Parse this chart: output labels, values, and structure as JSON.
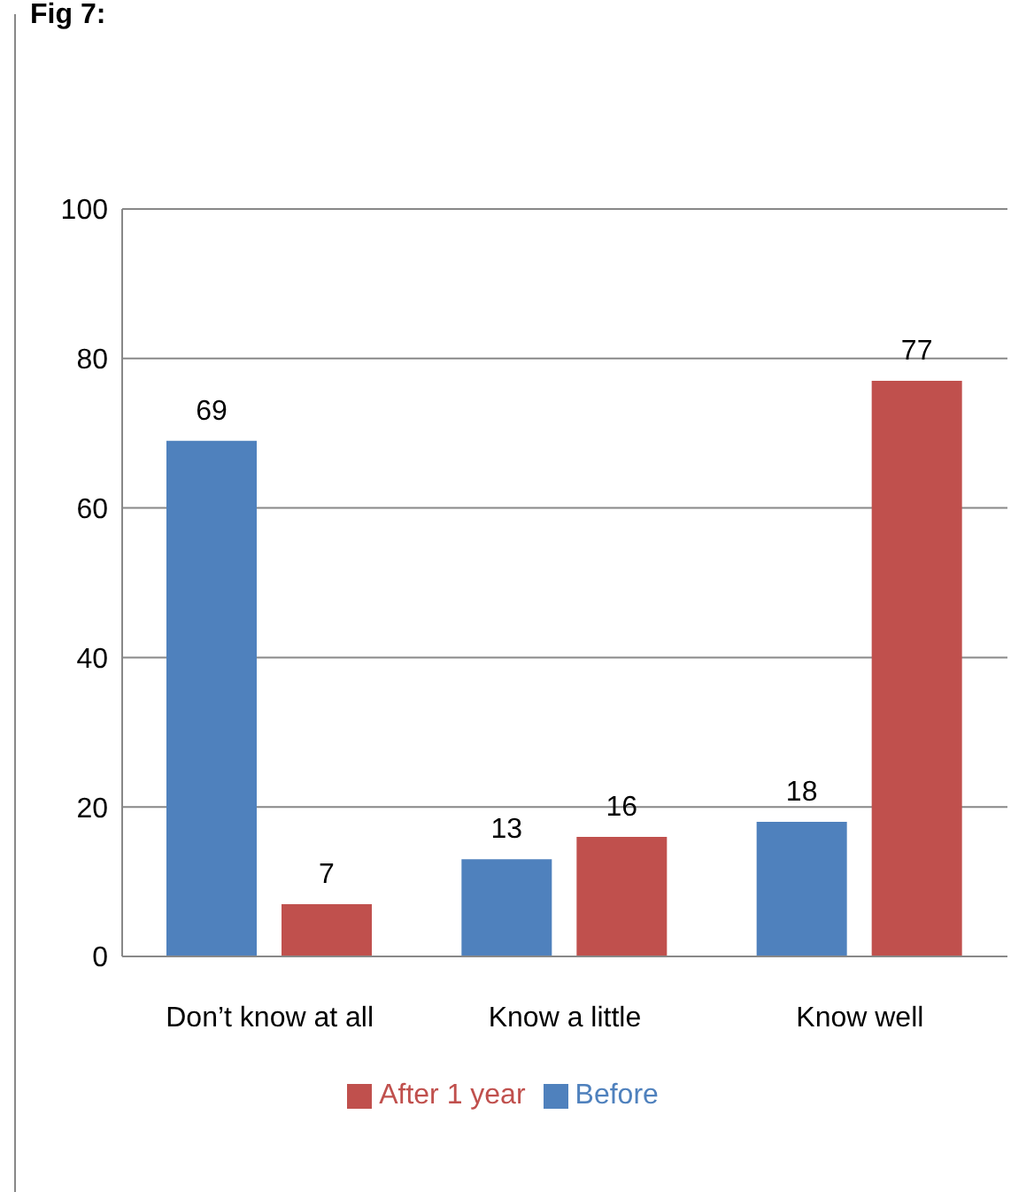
{
  "chart_data": {
    "type": "bar",
    "title": "Fig 7:",
    "categories": [
      "Don’t know at all",
      "Know a little",
      "Know well"
    ],
    "series": [
      {
        "name": "Before",
        "color": "#4f81bd",
        "values": [
          69,
          13,
          18
        ]
      },
      {
        "name": "After 1 year",
        "color": "#c0504d",
        "values": [
          7,
          16,
          77
        ]
      }
    ],
    "ylim": [
      0,
      100
    ],
    "yticks": [
      0,
      20,
      40,
      60,
      80,
      100
    ],
    "grid": "y",
    "legend": "bottom",
    "data_labels": true
  }
}
